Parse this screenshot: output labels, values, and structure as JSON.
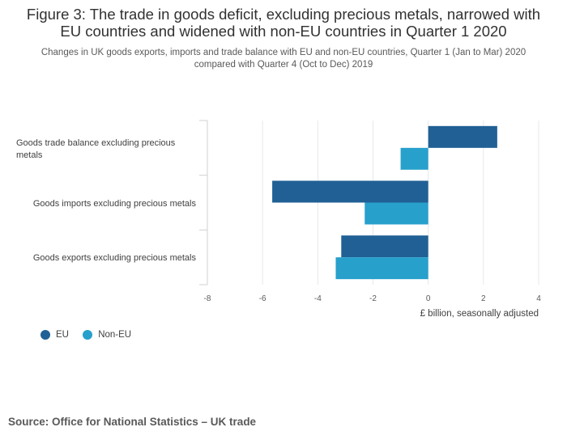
{
  "chart_data": {
    "type": "bar",
    "orientation": "horizontal",
    "title": "Figure 3: The trade in goods deficit, excluding precious metals, narrowed with EU countries and widened with non-EU countries in Quarter 1 2020",
    "subtitle": "Changes in UK goods exports, imports and trade balance with EU and non-EU countries, Quarter 1 (Jan to Mar) 2020 compared with Quarter 4 (Oct to Dec) 2019",
    "categories": [
      "Goods trade balance excluding precious metals",
      "Goods imports excluding precious metals",
      "Goods exports excluding precious metals"
    ],
    "series": [
      {
        "name": "EU",
        "color": "#206095",
        "values": [
          2.5,
          -5.65,
          -3.15
        ]
      },
      {
        "name": "Non-EU",
        "color": "#27a0cc",
        "values": [
          -1.0,
          -2.3,
          -3.35
        ]
      }
    ],
    "xlabel": "£ billion, seasonally adjusted",
    "ylabel": "",
    "xlim": [
      -8,
      4
    ],
    "xticks": [
      -8,
      -6,
      -4,
      -2,
      0,
      2,
      4
    ],
    "grid": true,
    "legend_position": "bottom-left"
  },
  "source": "Source: Office for National Statistics – UK trade"
}
